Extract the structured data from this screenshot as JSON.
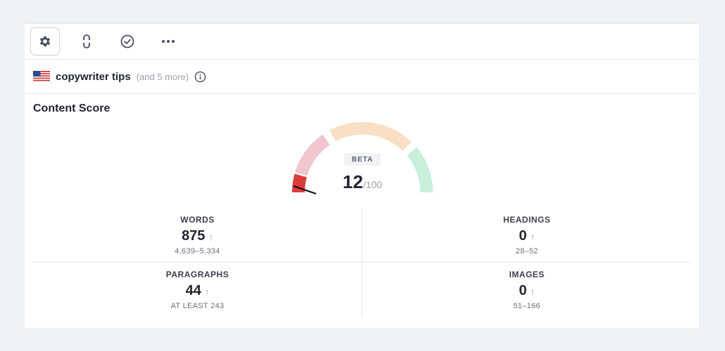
{
  "toolbar": {
    "items": [
      {
        "icon": "gear-icon",
        "active": true
      },
      {
        "icon": "link-icon",
        "active": false
      },
      {
        "icon": "check-circle-icon",
        "active": false
      },
      {
        "icon": "more-icon",
        "active": false
      }
    ]
  },
  "keyword": {
    "flag": "us-flag-icon",
    "main": "copywriter tips",
    "more": "(and 5 more)"
  },
  "content_score": {
    "title": "Content Score",
    "badge": "BETA",
    "value": "12",
    "max": "/100",
    "score_fraction": 0.12
  },
  "metrics": [
    {
      "label": "WORDS",
      "value": "875",
      "range": "4,639–5,334"
    },
    {
      "label": "HEADINGS",
      "value": "0",
      "range": "28–52"
    },
    {
      "label": "PARAGRAPHS",
      "value": "44",
      "range": "AT LEAST 243"
    },
    {
      "label": "IMAGES",
      "value": "0",
      "range": "51–166"
    }
  ],
  "colors": {
    "gauge_red": "#dc3b3b",
    "gauge_pink": "#f2c6cd",
    "gauge_peach": "#f9dfc4",
    "gauge_green": "#c8efd9",
    "background": "#eef1f5"
  }
}
